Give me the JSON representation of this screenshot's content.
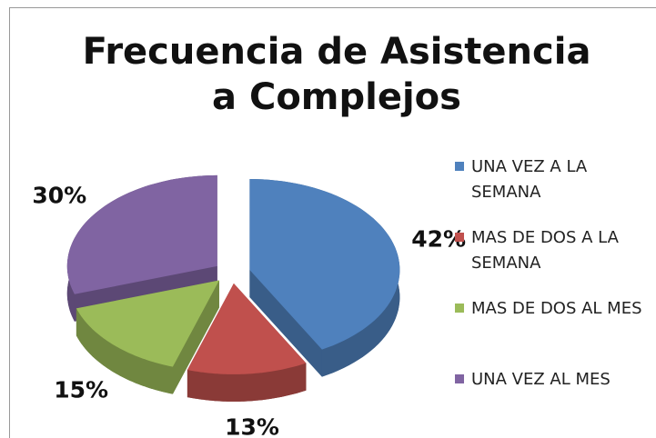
{
  "chart_data": {
    "type": "pie",
    "title": "Frecuencia de Asistencia a Complejos",
    "categories": [
      "UNA VEZ A LA SEMANA",
      "MAS DE DOS A LA SEMANA",
      "MAS DE DOS AL MES",
      "UNA VEZ AL MES"
    ],
    "values": [
      42,
      13,
      15,
      30
    ],
    "value_labels": [
      "42%",
      "13%",
      "15%",
      "30%"
    ],
    "colors": [
      "#4f81bd",
      "#c0504d",
      "#9bbb59",
      "#8064a2"
    ],
    "legend": "right"
  }
}
